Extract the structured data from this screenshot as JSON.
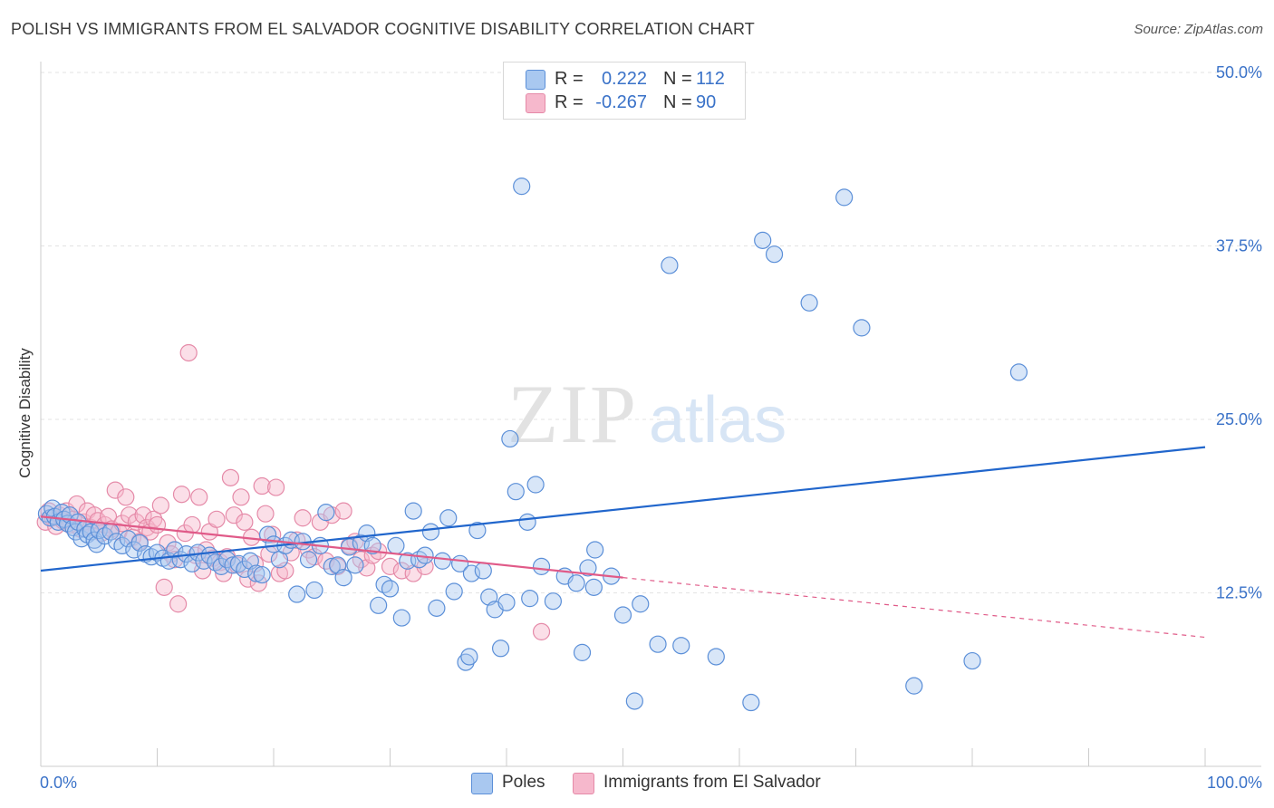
{
  "title": "POLISH VS IMMIGRANTS FROM EL SALVADOR COGNITIVE DISABILITY CORRELATION CHART",
  "source": "Source: ZipAtlas.com",
  "watermark": {
    "zip": "ZIP",
    "atlas": "atlas"
  },
  "legend_top": {
    "poles": {
      "r_label": "R =",
      "r_value": "0.222",
      "n_label": "N =",
      "n_value": "112"
    },
    "salvador": {
      "r_label": "R =",
      "r_value": "-0.267",
      "n_label": "N =",
      "n_value": "90"
    }
  },
  "legend_bottom": {
    "poles": "Poles",
    "salvador": "Immigrants from El Salvador"
  },
  "colors": {
    "poles_fill": "#a9c8f0",
    "poles_stroke": "#5b8fd8",
    "poles_line": "#2166cc",
    "salvador_fill": "#f6b8cc",
    "salvador_stroke": "#e58aa8",
    "salvador_line": "#e05a88",
    "tick_label": "#3a72c8",
    "grid": "#e3e3e3"
  },
  "chart_data": {
    "type": "scatter",
    "title": "POLISH VS IMMIGRANTS FROM EL SALVADOR COGNITIVE DISABILITY CORRELATION CHART",
    "xlabel": "",
    "ylabel": "Cognitive Disability",
    "xlim": [
      0,
      100
    ],
    "ylim": [
      0,
      50
    ],
    "x_tick_labels": [
      "0.0%",
      "100.0%"
    ],
    "y_ticks": [
      12.5,
      25.0,
      37.5,
      50.0
    ],
    "y_tick_labels": [
      "12.5%",
      "25.0%",
      "37.5%",
      "50.0%"
    ],
    "grid": true,
    "legend_position": "top-center",
    "series": [
      {
        "name": "Poles",
        "trend": {
          "x": [
            0,
            100
          ],
          "y": [
            14.1,
            23.0
          ],
          "style": "solid"
        },
        "points": [
          [
            0.5,
            18.2
          ],
          [
            0.8,
            17.9
          ],
          [
            1.0,
            18.6
          ],
          [
            1.2,
            18.0
          ],
          [
            1.5,
            17.6
          ],
          [
            1.8,
            18.3
          ],
          [
            2.0,
            17.8
          ],
          [
            2.3,
            17.5
          ],
          [
            2.5,
            18.1
          ],
          [
            2.8,
            17.2
          ],
          [
            3.0,
            16.9
          ],
          [
            3.2,
            17.6
          ],
          [
            3.5,
            16.4
          ],
          [
            3.8,
            17.1
          ],
          [
            4.0,
            16.7
          ],
          [
            4.3,
            16.9
          ],
          [
            4.6,
            16.3
          ],
          [
            4.8,
            16.0
          ],
          [
            5.0,
            17.0
          ],
          [
            5.5,
            16.6
          ],
          [
            6.0,
            16.9
          ],
          [
            6.5,
            16.2
          ],
          [
            7.0,
            15.9
          ],
          [
            7.5,
            16.4
          ],
          [
            8.0,
            15.6
          ],
          [
            8.5,
            16.1
          ],
          [
            9.0,
            15.3
          ],
          [
            9.5,
            15.1
          ],
          [
            10.0,
            15.4
          ],
          [
            10.5,
            15.0
          ],
          [
            11.0,
            14.8
          ],
          [
            11.5,
            15.6
          ],
          [
            12.0,
            14.9
          ],
          [
            12.5,
            15.3
          ],
          [
            13.0,
            14.6
          ],
          [
            13.5,
            15.4
          ],
          [
            14.0,
            14.8
          ],
          [
            14.5,
            15.2
          ],
          [
            15.0,
            14.7
          ],
          [
            15.5,
            14.4
          ],
          [
            16.0,
            14.9
          ],
          [
            16.5,
            14.5
          ],
          [
            17.0,
            14.6
          ],
          [
            17.5,
            14.2
          ],
          [
            18.0,
            14.8
          ],
          [
            18.5,
            13.9
          ],
          [
            19.0,
            13.8
          ],
          [
            19.5,
            16.7
          ],
          [
            20.0,
            16.0
          ],
          [
            20.5,
            14.9
          ],
          [
            21.0,
            15.9
          ],
          [
            21.5,
            16.3
          ],
          [
            22.0,
            12.4
          ],
          [
            22.5,
            16.2
          ],
          [
            23.0,
            14.9
          ],
          [
            23.5,
            12.7
          ],
          [
            24.0,
            15.9
          ],
          [
            24.5,
            18.3
          ],
          [
            25.0,
            14.4
          ],
          [
            25.5,
            14.5
          ],
          [
            26.0,
            13.6
          ],
          [
            26.5,
            15.8
          ],
          [
            27.0,
            14.5
          ],
          [
            27.5,
            16.1
          ],
          [
            28.0,
            16.8
          ],
          [
            28.5,
            15.9
          ],
          [
            29.0,
            11.6
          ],
          [
            29.5,
            13.1
          ],
          [
            30.0,
            12.8
          ],
          [
            30.5,
            15.9
          ],
          [
            31.0,
            10.7
          ],
          [
            31.5,
            14.8
          ],
          [
            32.0,
            18.4
          ],
          [
            32.5,
            14.9
          ],
          [
            33.0,
            15.2
          ],
          [
            33.5,
            16.9
          ],
          [
            34.0,
            11.4
          ],
          [
            34.5,
            14.8
          ],
          [
            35.0,
            17.9
          ],
          [
            35.5,
            12.6
          ],
          [
            36.0,
            14.6
          ],
          [
            36.5,
            7.5
          ],
          [
            36.8,
            7.9
          ],
          [
            37.0,
            13.9
          ],
          [
            37.5,
            17.0
          ],
          [
            38.0,
            14.1
          ],
          [
            38.5,
            12.2
          ],
          [
            39.0,
            11.3
          ],
          [
            39.5,
            8.5
          ],
          [
            40.0,
            11.8
          ],
          [
            40.3,
            23.6
          ],
          [
            40.8,
            19.8
          ],
          [
            41.3,
            41.8
          ],
          [
            41.8,
            17.6
          ],
          [
            42.0,
            12.1
          ],
          [
            42.5,
            20.3
          ],
          [
            43.0,
            14.4
          ],
          [
            44.0,
            11.9
          ],
          [
            45.0,
            13.7
          ],
          [
            46.0,
            13.2
          ],
          [
            46.5,
            8.2
          ],
          [
            47.0,
            14.3
          ],
          [
            47.5,
            12.9
          ],
          [
            47.6,
            15.6
          ],
          [
            49.0,
            13.7
          ],
          [
            50.0,
            10.9
          ],
          [
            51.0,
            4.7
          ],
          [
            51.5,
            11.7
          ],
          [
            53.0,
            8.8
          ],
          [
            54.0,
            36.1
          ],
          [
            55.0,
            8.7
          ],
          [
            58.0,
            7.9
          ],
          [
            61.0,
            4.6
          ],
          [
            62.0,
            37.9
          ],
          [
            63.0,
            36.9
          ],
          [
            66.0,
            33.4
          ],
          [
            69.0,
            41.0
          ],
          [
            70.5,
            31.6
          ],
          [
            75.0,
            5.8
          ],
          [
            80.0,
            7.6
          ],
          [
            84.0,
            28.4
          ]
        ]
      },
      {
        "name": "Immigrants from El Salvador",
        "trend": {
          "x": [
            0,
            50,
            100
          ],
          "y": [
            18.0,
            13.6,
            9.3
          ],
          "style": "solid-then-dashed"
        },
        "points": [
          [
            0.4,
            17.6
          ],
          [
            0.7,
            18.4
          ],
          [
            1.0,
            17.9
          ],
          [
            1.3,
            17.3
          ],
          [
            1.6,
            18.1
          ],
          [
            1.9,
            17.7
          ],
          [
            2.2,
            18.4
          ],
          [
            2.5,
            17.4
          ],
          [
            2.8,
            17.8
          ],
          [
            3.1,
            18.9
          ],
          [
            3.4,
            17.1
          ],
          [
            3.7,
            17.6
          ],
          [
            4.0,
            18.4
          ],
          [
            4.3,
            17.2
          ],
          [
            4.6,
            18.1
          ],
          [
            4.9,
            17.7
          ],
          [
            5.2,
            16.8
          ],
          [
            5.5,
            17.4
          ],
          [
            5.8,
            18.0
          ],
          [
            6.1,
            17.1
          ],
          [
            6.4,
            19.9
          ],
          [
            6.7,
            16.9
          ],
          [
            7.0,
            17.5
          ],
          [
            7.3,
            19.4
          ],
          [
            7.6,
            18.1
          ],
          [
            7.9,
            16.5
          ],
          [
            8.2,
            17.6
          ],
          [
            8.5,
            16.2
          ],
          [
            8.8,
            18.1
          ],
          [
            9.1,
            17.2
          ],
          [
            9.4,
            16.9
          ],
          [
            9.7,
            17.8
          ],
          [
            10.0,
            17.4
          ],
          [
            10.3,
            18.8
          ],
          [
            10.6,
            12.9
          ],
          [
            10.9,
            16.1
          ],
          [
            11.2,
            15.3
          ],
          [
            11.5,
            14.9
          ],
          [
            11.8,
            11.7
          ],
          [
            12.1,
            19.6
          ],
          [
            12.4,
            16.8
          ],
          [
            12.7,
            29.8
          ],
          [
            13.0,
            17.4
          ],
          [
            13.3,
            15.2
          ],
          [
            13.6,
            19.4
          ],
          [
            13.9,
            14.1
          ],
          [
            14.2,
            15.6
          ],
          [
            14.5,
            16.9
          ],
          [
            14.8,
            15.0
          ],
          [
            15.1,
            17.8
          ],
          [
            15.4,
            14.7
          ],
          [
            15.7,
            13.9
          ],
          [
            16.0,
            15.1
          ],
          [
            16.3,
            20.8
          ],
          [
            16.6,
            18.1
          ],
          [
            16.9,
            14.5
          ],
          [
            17.2,
            19.4
          ],
          [
            17.5,
            17.6
          ],
          [
            17.8,
            13.5
          ],
          [
            18.1,
            16.5
          ],
          [
            18.4,
            14.6
          ],
          [
            18.7,
            13.2
          ],
          [
            19.0,
            20.2
          ],
          [
            19.3,
            18.2
          ],
          [
            19.6,
            15.3
          ],
          [
            19.9,
            16.7
          ],
          [
            20.2,
            20.1
          ],
          [
            20.5,
            13.9
          ],
          [
            21.0,
            14.1
          ],
          [
            21.5,
            15.4
          ],
          [
            22.0,
            16.3
          ],
          [
            22.5,
            17.9
          ],
          [
            23.0,
            15.6
          ],
          [
            23.5,
            15.1
          ],
          [
            24.0,
            17.6
          ],
          [
            24.5,
            14.8
          ],
          [
            25.0,
            18.1
          ],
          [
            25.5,
            14.4
          ],
          [
            26.0,
            18.4
          ],
          [
            26.5,
            15.9
          ],
          [
            27.0,
            16.2
          ],
          [
            27.5,
            14.9
          ],
          [
            28.0,
            14.3
          ],
          [
            28.5,
            15.2
          ],
          [
            29.0,
            15.5
          ],
          [
            30.0,
            14.4
          ],
          [
            31.0,
            14.1
          ],
          [
            32.0,
            13.9
          ],
          [
            33.0,
            14.4
          ],
          [
            43.0,
            9.7
          ]
        ]
      }
    ]
  }
}
